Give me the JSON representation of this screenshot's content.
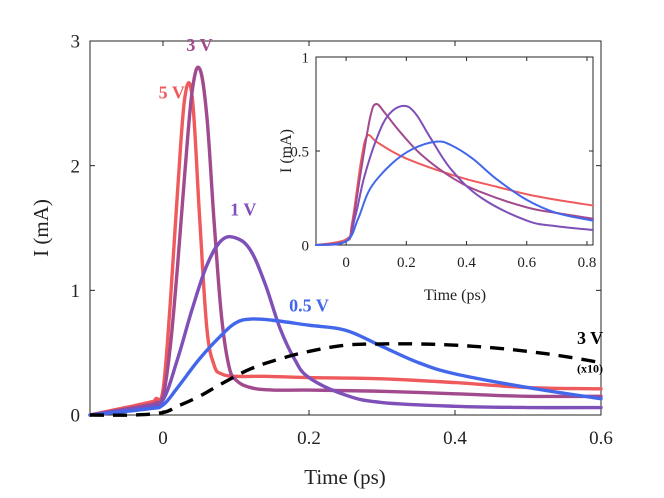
{
  "colors": {
    "v5": "#ef5a5d",
    "v3": "#a24a8e",
    "v1": "#7e50b8",
    "v05": "#4367ea",
    "v3x10": "#000000",
    "axis": "#262626"
  },
  "chart_data": [
    {
      "id": "main",
      "type": "line",
      "xlabel": "Time (ps)",
      "ylabel": "I (mA)",
      "xlim": [
        -0.1,
        0.6
      ],
      "ylim": [
        0,
        3
      ],
      "xticks": [
        0,
        0.2,
        0.4,
        0.6
      ],
      "xtick_labels": [
        "0",
        "0.2",
        "0.4",
        "0.6"
      ],
      "yticks": [
        0,
        1,
        2,
        3
      ],
      "ytick_labels": [
        "0",
        "1",
        "2",
        "3"
      ],
      "series": [
        {
          "name": "5 V",
          "color_key": "v5",
          "style": "solid",
          "x": [
            -0.1,
            -0.02,
            -0.01,
            0.0,
            0.01,
            0.02,
            0.03,
            0.04,
            0.05,
            0.06,
            0.07,
            0.08,
            0.1,
            0.14,
            0.2,
            0.3,
            0.4,
            0.5,
            0.6
          ],
          "y": [
            0,
            0.1,
            0.13,
            0.2,
            0.9,
            1.8,
            2.55,
            2.55,
            1.6,
            0.7,
            0.4,
            0.33,
            0.31,
            0.31,
            0.3,
            0.29,
            0.26,
            0.22,
            0.21
          ]
        },
        {
          "name": "3 V",
          "color_key": "v3",
          "style": "solid",
          "x": [
            -0.1,
            -0.02,
            -0.01,
            0.0,
            0.01,
            0.02,
            0.03,
            0.04,
            0.05,
            0.06,
            0.07,
            0.08,
            0.09,
            0.1,
            0.12,
            0.15,
            0.2,
            0.3,
            0.4,
            0.5,
            0.6
          ],
          "y": [
            0,
            0.08,
            0.1,
            0.15,
            0.55,
            1.2,
            1.95,
            2.6,
            2.78,
            2.4,
            1.55,
            0.8,
            0.4,
            0.28,
            0.22,
            0.2,
            0.2,
            0.19,
            0.17,
            0.15,
            0.15
          ]
        },
        {
          "name": "1 V",
          "color_key": "v1",
          "style": "solid",
          "x": [
            -0.1,
            -0.02,
            0.0,
            0.02,
            0.04,
            0.06,
            0.08,
            0.1,
            0.12,
            0.14,
            0.16,
            0.18,
            0.2,
            0.25,
            0.3,
            0.4,
            0.5,
            0.6
          ],
          "y": [
            0,
            0.07,
            0.12,
            0.45,
            0.85,
            1.2,
            1.4,
            1.42,
            1.32,
            1.05,
            0.7,
            0.45,
            0.3,
            0.16,
            0.1,
            0.07,
            0.06,
            0.06
          ]
        },
        {
          "name": "0.5 V",
          "color_key": "v05",
          "style": "solid",
          "x": [
            -0.1,
            -0.02,
            0.0,
            0.02,
            0.05,
            0.08,
            0.1,
            0.12,
            0.15,
            0.2,
            0.25,
            0.3,
            0.35,
            0.4,
            0.5,
            0.6
          ],
          "y": [
            0,
            0.05,
            0.08,
            0.22,
            0.45,
            0.64,
            0.74,
            0.77,
            0.76,
            0.72,
            0.68,
            0.55,
            0.42,
            0.33,
            0.22,
            0.13
          ]
        },
        {
          "name": "3 V (x10)",
          "color_key": "v3x10",
          "style": "dashed",
          "x": [
            -0.1,
            -0.04,
            0.0,
            0.02,
            0.05,
            0.08,
            0.12,
            0.16,
            0.2,
            0.25,
            0.3,
            0.35,
            0.4,
            0.45,
            0.5,
            0.55,
            0.6
          ],
          "y": [
            0,
            0.0,
            0.02,
            0.07,
            0.15,
            0.25,
            0.37,
            0.45,
            0.51,
            0.56,
            0.57,
            0.57,
            0.56,
            0.54,
            0.51,
            0.47,
            0.42
          ]
        }
      ],
      "annotations": [
        {
          "text": "5 V",
          "color_key": "v5",
          "x": 0.012,
          "y": 2.54
        },
        {
          "text": "3 V",
          "color_key": "v3",
          "x": 0.05,
          "y": 2.92
        },
        {
          "text": "1 V",
          "color_key": "v1",
          "x": 0.11,
          "y": 1.6
        },
        {
          "text": "0.5 V",
          "color_key": "v05",
          "x": 0.2,
          "y": 0.83
        },
        {
          "text": "3 V",
          "color_key": "v3x10",
          "x": 0.585,
          "y": 0.57
        },
        {
          "text": "(x10)",
          "color_key": "v3x10",
          "x": 0.585,
          "y": 0.34
        }
      ]
    },
    {
      "id": "inset",
      "type": "line",
      "xlabel": "Time (ps)",
      "ylabel": "I (mA)",
      "xlim": [
        -0.1,
        0.82
      ],
      "ylim": [
        0,
        1
      ],
      "xticks": [
        0,
        0.2,
        0.4,
        0.6,
        0.8
      ],
      "xtick_labels": [
        "0",
        "0.2",
        "0.4",
        "0.6",
        "0.8"
      ],
      "yticks": [
        0,
        0.5,
        1
      ],
      "ytick_labels": [
        "0",
        "0.5",
        "1"
      ],
      "series": [
        {
          "name": "5 V",
          "color_key": "v5",
          "x": [
            -0.1,
            0.0,
            0.02,
            0.05,
            0.07,
            0.1,
            0.15,
            0.2,
            0.3,
            0.4,
            0.5,
            0.6,
            0.7,
            0.82
          ],
          "y": [
            0,
            0.03,
            0.12,
            0.45,
            0.58,
            0.55,
            0.5,
            0.46,
            0.4,
            0.35,
            0.31,
            0.27,
            0.24,
            0.21
          ]
        },
        {
          "name": "3 V",
          "color_key": "v3",
          "x": [
            -0.1,
            0.0,
            0.02,
            0.05,
            0.08,
            0.1,
            0.13,
            0.18,
            0.25,
            0.35,
            0.45,
            0.6,
            0.7,
            0.82
          ],
          "y": [
            0,
            0.02,
            0.1,
            0.4,
            0.68,
            0.75,
            0.7,
            0.6,
            0.48,
            0.36,
            0.28,
            0.2,
            0.17,
            0.14
          ]
        },
        {
          "name": "1 V",
          "color_key": "v1",
          "x": [
            -0.1,
            0.0,
            0.03,
            0.06,
            0.1,
            0.14,
            0.19,
            0.23,
            0.28,
            0.35,
            0.45,
            0.6,
            0.7,
            0.82
          ],
          "y": [
            0,
            0.02,
            0.15,
            0.36,
            0.56,
            0.69,
            0.74,
            0.7,
            0.57,
            0.4,
            0.25,
            0.13,
            0.1,
            0.08
          ]
        },
        {
          "name": "0.5 V",
          "color_key": "v05",
          "x": [
            -0.1,
            0.0,
            0.04,
            0.08,
            0.15,
            0.22,
            0.3,
            0.35,
            0.42,
            0.5,
            0.6,
            0.7,
            0.82
          ],
          "y": [
            0,
            0.02,
            0.14,
            0.3,
            0.43,
            0.51,
            0.55,
            0.53,
            0.46,
            0.35,
            0.24,
            0.17,
            0.13
          ]
        }
      ]
    }
  ]
}
